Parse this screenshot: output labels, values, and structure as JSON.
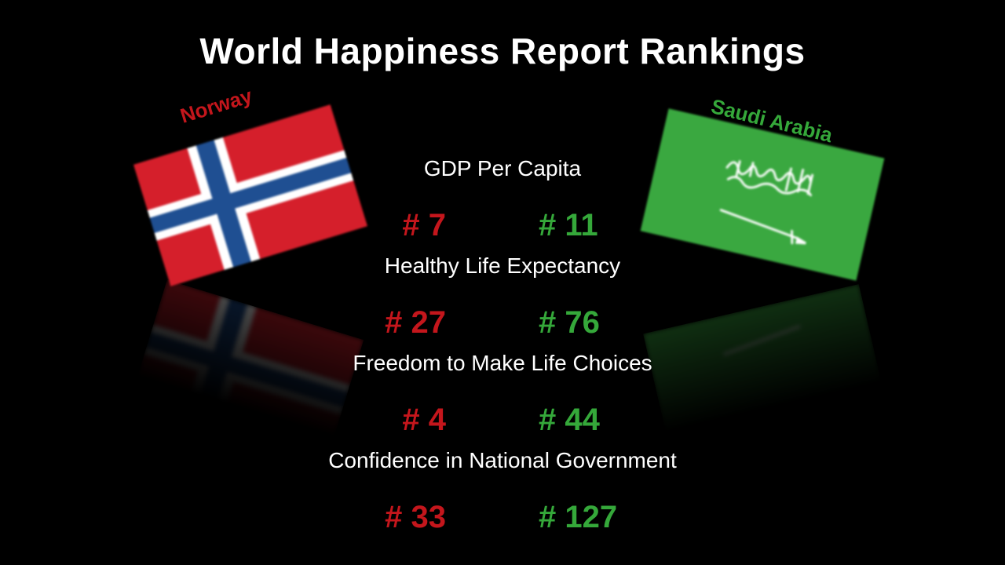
{
  "title": "World Happiness Report Rankings",
  "countries": {
    "left": {
      "name": "Norway",
      "color": "#c4161c"
    },
    "right": {
      "name": "Saudi Arabia",
      "color": "#35a83a"
    }
  },
  "metrics": [
    {
      "label": "GDP Per Capita",
      "norway": "# 7",
      "saudi": "# 11"
    },
    {
      "label": "Healthy Life Expectancy",
      "norway": "# 27",
      "saudi": "# 76"
    },
    {
      "label": "Freedom to Make Life Choices",
      "norway": "# 4",
      "saudi": "# 44"
    },
    {
      "label": "Confidence in National Government",
      "norway": "# 33",
      "saudi": "# 127"
    }
  ],
  "icons": {
    "left_flag": "norway-flag-icon",
    "right_flag": "saudi-arabia-flag-icon"
  }
}
